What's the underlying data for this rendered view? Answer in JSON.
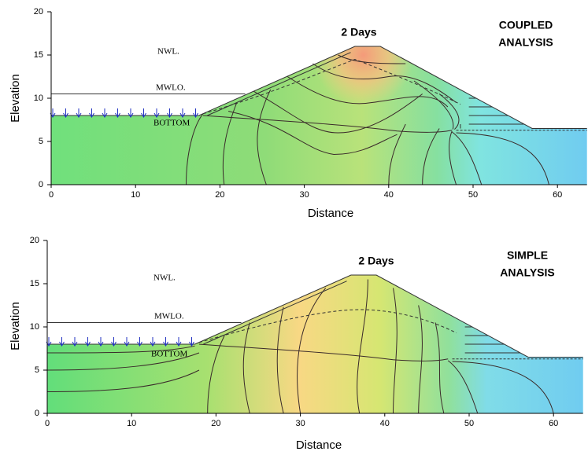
{
  "chart_data": [
    {
      "type": "contour",
      "x_label": "Distance",
      "y_label": "Elevation",
      "xlim": [
        0,
        63.5
      ],
      "ylim": [
        0,
        20
      ],
      "xticks": [
        0,
        10,
        20,
        30,
        40,
        50,
        60
      ],
      "yticks": [
        0,
        5,
        10,
        15,
        20
      ],
      "time_label": "2 Days",
      "method_label": [
        "COUPLED",
        "ANALYSIS"
      ],
      "level_labels": [
        "NWL.",
        "MWLO.",
        "BOTTOM"
      ]
    },
    {
      "type": "contour",
      "x_label": "Distance",
      "y_label": "Elevation",
      "xlim": [
        0,
        63.5
      ],
      "ylim": [
        0,
        20
      ],
      "xticks": [
        0,
        10,
        20,
        30,
        40,
        50,
        60
      ],
      "yticks": [
        0,
        5,
        10,
        15,
        20
      ],
      "time_label": "2 Days",
      "method_label": [
        "SIMPLE",
        "ANALYSIS"
      ],
      "level_labels": [
        "NWL.",
        "MWLO.",
        "BOTTOM"
      ]
    }
  ]
}
